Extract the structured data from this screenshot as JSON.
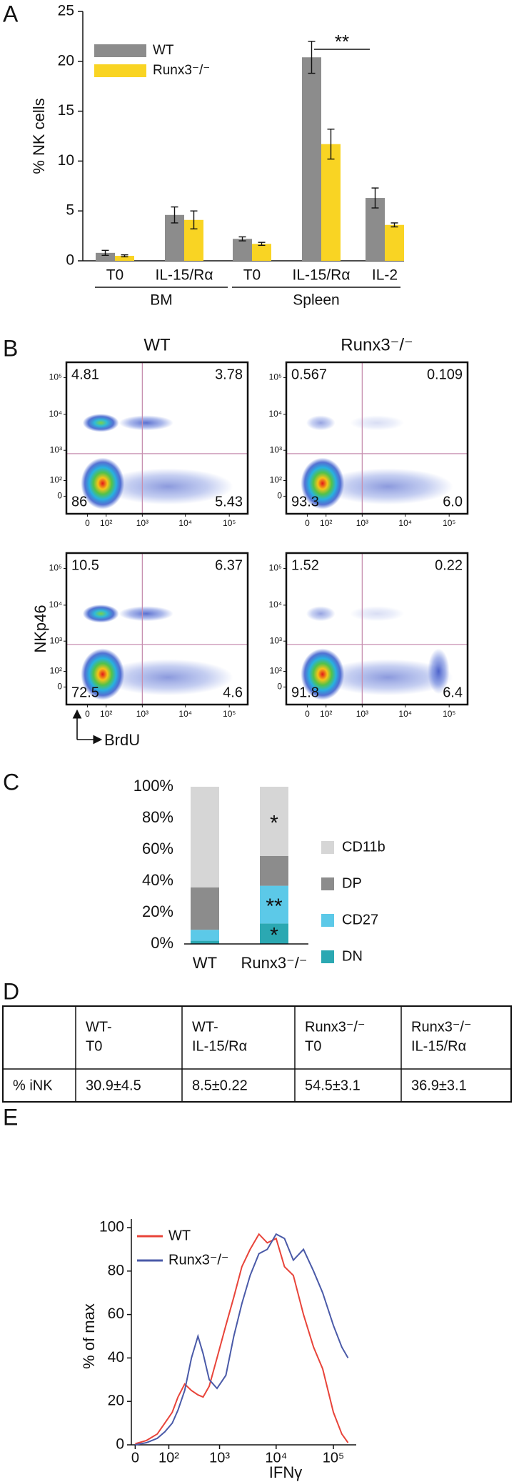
{
  "chart_data": [
    {
      "type": "bar",
      "panel": "A",
      "ylabel": "% NK cells",
      "categories": [
        "T0",
        "IL-15/Rα",
        "T0",
        "IL-15/Rα",
        "IL-2"
      ],
      "groups": [
        {
          "name": "BM",
          "size": 2
        },
        {
          "name": "Spleen",
          "size": 3
        }
      ],
      "series": [
        {
          "name": "WT",
          "color": "#8c8c8c",
          "values": [
            0.8,
            4.6,
            2.2,
            20.4,
            6.3
          ],
          "errors": [
            0.25,
            0.8,
            0.2,
            1.6,
            1.0
          ]
        },
        {
          "name": "Runx3⁻/⁻",
          "color": "#f9d423",
          "values": [
            0.5,
            4.1,
            1.7,
            11.7,
            3.6
          ],
          "errors": [
            0.1,
            0.9,
            0.15,
            1.5,
            0.2
          ]
        }
      ],
      "ylim": [
        0,
        25
      ],
      "yticks": [
        0,
        5,
        10,
        15,
        20,
        25
      ],
      "annotation": "**"
    },
    {
      "type": "flow",
      "panel": "B",
      "column_titles": [
        "WT",
        "Runx3⁻/⁻"
      ],
      "xlabel": "BrdU",
      "ylabel": "NKp46",
      "xlim": [
        -40,
        262144
      ],
      "ylim": [
        -40,
        262144
      ],
      "xticks": [
        0,
        {
          "value": 100,
          "label": "10²"
        },
        {
          "value": 1000,
          "label": "10³"
        },
        {
          "value": 10000,
          "label": "10⁴"
        },
        {
          "value": 100000,
          "label": "10⁵"
        }
      ],
      "yticks": [
        0,
        {
          "value": 100,
          "label": "10²"
        },
        {
          "value": 1000,
          "label": "10³"
        },
        {
          "value": 10000,
          "label": "10⁴"
        },
        {
          "value": 100000,
          "label": "10⁵"
        }
      ],
      "gate_x": 1000,
      "gate_y": 800,
      "plots": [
        {
          "values": [
            4.81,
            3.78,
            86,
            5.43
          ]
        },
        {
          "values": [
            0.567,
            0.109,
            93.3,
            6
          ],
          "value_labels": [
            "0.567",
            "0.109",
            "93.3",
            "6.0"
          ]
        },
        {
          "values": [
            10.5,
            6.37,
            72.5,
            4.6
          ]
        },
        {
          "values": [
            1.52,
            0.22,
            91.8,
            6.4
          ]
        }
      ]
    },
    {
      "type": "stacked_bar",
      "panel": "C",
      "categories": [
        "WT",
        "Runx3⁻/⁻"
      ],
      "series": [
        {
          "name": "DN",
          "color": "#2ba8b2",
          "values": [
            2,
            13
          ],
          "labels": [
            null,
            "*"
          ]
        },
        {
          "name": "CD27",
          "color": "#5cc9e8",
          "values": [
            7,
            24
          ],
          "labels": [
            null,
            "**"
          ]
        },
        {
          "name": "DP",
          "color": "#8c8c8c",
          "values": [
            27,
            19
          ],
          "labels": [
            null,
            null
          ]
        },
        {
          "name": "CD11b",
          "color": "#d6d6d6",
          "values": [
            64,
            44
          ],
          "labels": [
            null,
            "*"
          ]
        }
      ],
      "ylim": [
        0,
        100
      ],
      "yticks": [
        {
          "value": 0,
          "label": "0%"
        },
        {
          "value": 20,
          "label": "20%"
        },
        {
          "value": 40,
          "label": "40%"
        },
        {
          "value": 60,
          "label": "60%"
        },
        {
          "value": 80,
          "label": "80%"
        },
        {
          "value": 100,
          "label": "100%"
        }
      ]
    },
    {
      "type": "table",
      "panel": "D",
      "header": [
        null,
        [
          "WT-",
          "T0"
        ],
        [
          "WT-",
          "IL-15/Rα"
        ],
        [
          "Runx3⁻/⁻",
          "T0"
        ],
        [
          "Runx3⁻/⁻",
          "IL-15/Rα"
        ]
      ],
      "rows": [
        [
          "% iNK",
          "30.9±4.5",
          "8.5±0.22",
          "54.5±3.1",
          "36.9±3.1"
        ]
      ]
    },
    {
      "type": "line",
      "panel": "E",
      "xlabel": "IFNγ",
      "ylabel": "% of max",
      "xlim": [
        -5,
        250000
      ],
      "xticks": [
        0,
        {
          "value": 100,
          "label": "10²"
        },
        {
          "value": 1000,
          "label": "10³"
        },
        {
          "value": 10000,
          "label": "10⁴"
        },
        {
          "value": 100000,
          "label": "10⁵"
        }
      ],
      "ylim": [
        0,
        100
      ],
      "yticks": [
        0,
        20,
        40,
        60,
        80,
        100
      ],
      "series": [
        {
          "name": "WT",
          "color": "#e8443a",
          "x": [
            0,
            20,
            50,
            80,
            120,
            160,
            220,
            300,
            400,
            500,
            650,
            900,
            1300,
            1800,
            2500,
            3500,
            5000,
            7000,
            10000,
            14000,
            20000,
            30000,
            45000,
            65000,
            100000,
            140000,
            180000
          ],
          "values": [
            0.5,
            2,
            5,
            10,
            15,
            22,
            28,
            25,
            23,
            22,
            27,
            40,
            55,
            68,
            82,
            90,
            97,
            93,
            95,
            82,
            78,
            60,
            45,
            35,
            15,
            5,
            1
          ]
        },
        {
          "name": "Runx3⁻/⁻",
          "color": "#4a5aa8",
          "x": [
            0,
            20,
            50,
            80,
            120,
            160,
            220,
            300,
            400,
            500,
            650,
            900,
            1300,
            1800,
            2500,
            3500,
            5000,
            7000,
            10000,
            14000,
            20000,
            30000,
            45000,
            65000,
            100000,
            140000,
            180000
          ],
          "values": [
            0,
            1,
            3,
            6,
            10,
            16,
            25,
            40,
            50,
            42,
            30,
            26,
            32,
            50,
            65,
            78,
            88,
            90,
            97,
            95,
            85,
            90,
            80,
            70,
            55,
            45,
            40
          ]
        }
      ]
    }
  ]
}
